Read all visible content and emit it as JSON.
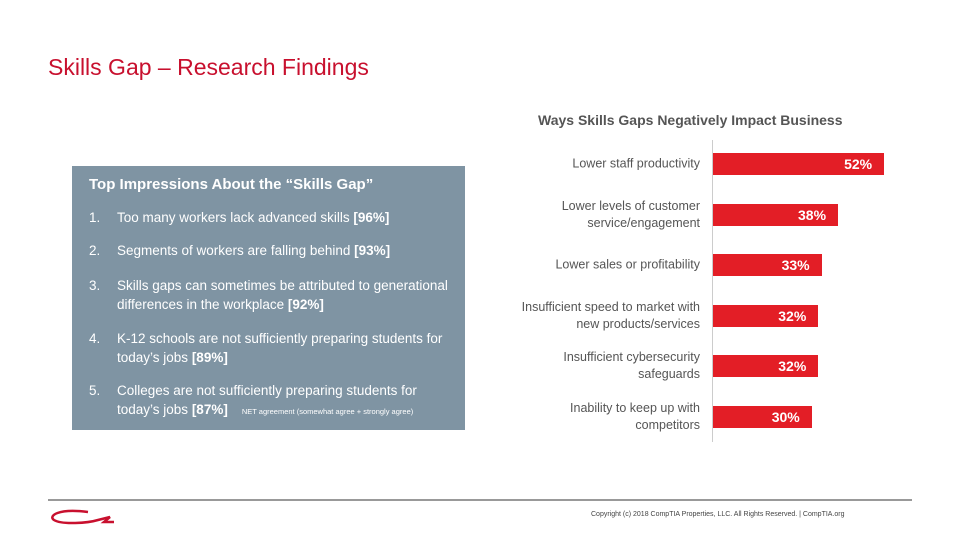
{
  "slide_title": "Skills Gap – Research Findings",
  "impressions": {
    "title": "Top Impressions About the “Skills Gap”",
    "items": [
      {
        "num": "1.",
        "text": "Too many workers lack advanced skills",
        "value_label": "[96%]"
      },
      {
        "num": "2.",
        "text": "Segments of workers are falling behind",
        "value_label": "[93%]"
      },
      {
        "num": "3.",
        "text": "Skills gaps can sometimes be attributed to generational differences in the workplace",
        "value_label": "[92%]"
      },
      {
        "num": "4.",
        "text": "K-12 schools are not sufficiently preparing students for today’s jobs",
        "value_label": "[89%]"
      },
      {
        "num": "5.",
        "text": "Colleges are not sufficiently preparing students for today’s jobs",
        "value_label": "[87%]"
      }
    ],
    "note": "NET agreement (somewhat agree + strongly agree)"
  },
  "chart_data": {
    "type": "bar",
    "orientation": "horizontal",
    "title": "Ways Skills Gaps Negatively Impact Business",
    "categories": [
      "Lower staff productivity",
      "Lower levels of customer\nservice/engagement",
      "Lower sales or profitability",
      "Insufficient speed to market with\nnew products/services",
      "Insufficient cybersecurity\nsafeguards",
      "Inability to keep up with\ncompetitors"
    ],
    "values": [
      52,
      38,
      33,
      32,
      32,
      30
    ],
    "value_labels": [
      "52%",
      "38%",
      "33%",
      "32%",
      "32%",
      "30%"
    ],
    "color": "#e31e26"
  },
  "footer": "Copyright (c) 2018 CompTIA Properties, LLC. All Rights Reserved. | CompTIA.org"
}
